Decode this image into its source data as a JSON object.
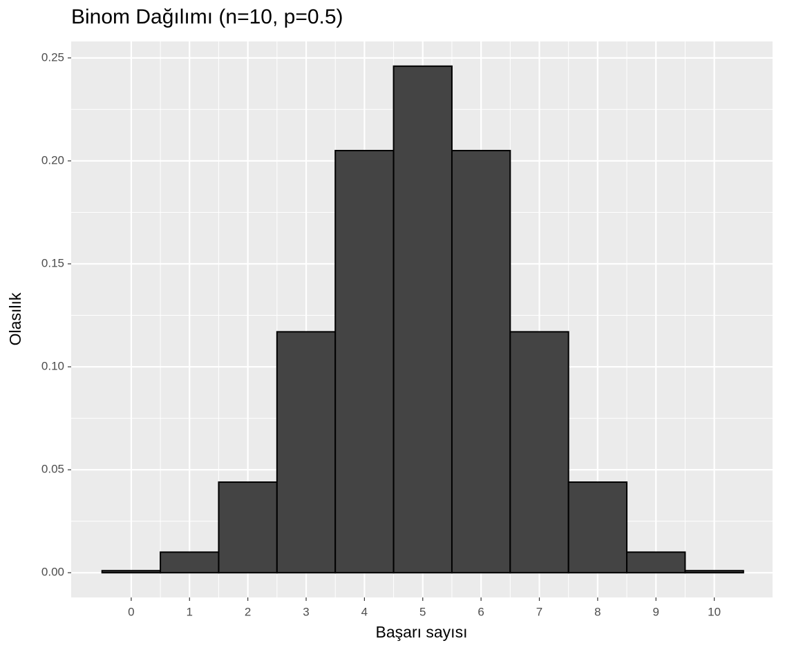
{
  "chart_data": {
    "type": "bar",
    "title": "Binom Dağılımı (n=10, p=0.5)",
    "x_label": "Başarı sayısı",
    "y_label": "Olasılık",
    "x": [
      0,
      1,
      2,
      3,
      4,
      5,
      6,
      7,
      8,
      9,
      10
    ],
    "values": [
      0.001,
      0.01,
      0.044,
      0.117,
      0.205,
      0.246,
      0.205,
      0.117,
      0.044,
      0.01,
      0.001
    ],
    "color": "#444444",
    "xlim": [
      -1.03,
      11.0
    ],
    "xticks": [
      0,
      1,
      2,
      3,
      4,
      5,
      6,
      7,
      8,
      9,
      10
    ],
    "ylim": [
      -0.012,
      0.258
    ],
    "yticks": [
      {
        "value": 0,
        "label": "0.00"
      },
      {
        "value": 0.05,
        "label": "0.05"
      },
      {
        "value": 0.1,
        "label": "0.10"
      },
      {
        "value": 0.15,
        "label": "0.15"
      },
      {
        "value": 0.2,
        "label": "0.20"
      },
      {
        "value": 0.25,
        "label": "0.25"
      }
    ],
    "grid": true
  }
}
